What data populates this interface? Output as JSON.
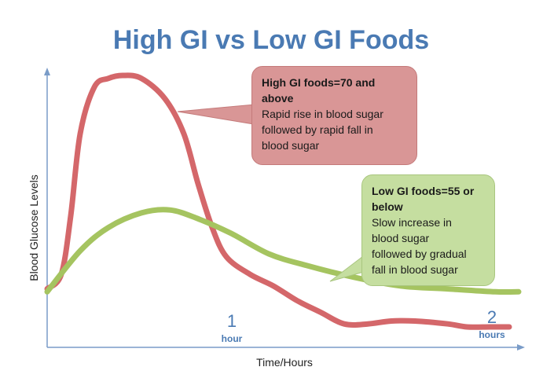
{
  "chart_data": {
    "type": "line",
    "title": "High GI vs Low GI Foods",
    "xlabel": "Time/Hours",
    "ylabel": "Blood Glucose Levels",
    "xlim": [
      0,
      2.2
    ],
    "ylim": [
      0,
      100
    ],
    "x_ticks": [
      {
        "x": 1,
        "value": "1",
        "unit": "hour"
      },
      {
        "x": 2,
        "value": "2",
        "unit": "hours"
      }
    ],
    "series": [
      {
        "color": "#d4676a",
        "points": [
          [
            0,
            20
          ],
          [
            0.06,
            25
          ],
          [
            0.1,
            45
          ],
          [
            0.14,
            73
          ],
          [
            0.2,
            89
          ],
          [
            0.26,
            92
          ],
          [
            0.32,
            93
          ],
          [
            0.4,
            92
          ],
          [
            0.5,
            85
          ],
          [
            0.58,
            73
          ],
          [
            0.64,
            56
          ],
          [
            0.7,
            41
          ],
          [
            0.76,
            31
          ],
          [
            0.86,
            25
          ],
          [
            0.96,
            21
          ],
          [
            1.06,
            16
          ],
          [
            1.16,
            12
          ],
          [
            1.26,
            8
          ],
          [
            1.36,
            8
          ],
          [
            1.46,
            9
          ],
          [
            1.56,
            9
          ],
          [
            1.7,
            8
          ],
          [
            1.78,
            7
          ],
          [
            1.88,
            7
          ],
          [
            1.96,
            7
          ]
        ]
      },
      {
        "color": "#a5c460",
        "points": [
          [
            0,
            19
          ],
          [
            0.14,
            33
          ],
          [
            0.26,
            41
          ],
          [
            0.4,
            46
          ],
          [
            0.52,
            47
          ],
          [
            0.64,
            44
          ],
          [
            0.78,
            39
          ],
          [
            0.94,
            32
          ],
          [
            1.1,
            28
          ],
          [
            1.3,
            24
          ],
          [
            1.5,
            21
          ],
          [
            1.7,
            20
          ],
          [
            1.9,
            19
          ],
          [
            2.0,
            19
          ]
        ]
      }
    ],
    "annotations": [
      {
        "heading": "High GI foods=70 and above",
        "lines": [
          "High GI foods=70 and",
          "above",
          "Rapid rise in blood sugar",
          "followed by rapid fall in",
          "blood sugar"
        ],
        "color": "#d99696"
      },
      {
        "heading": "Low GI foods=55 or below",
        "lines": [
          "Low GI foods=55 or",
          "below",
          "Slow increase in",
          "blood sugar",
          "followed by gradual",
          "fall in blood sugar"
        ],
        "color": "#c5dea0"
      }
    ],
    "grid": false,
    "legend": "none"
  },
  "colors": {
    "title": "#4a7ab3",
    "axis": "#7a9cc8",
    "tick_label": "#4a7ab3"
  }
}
